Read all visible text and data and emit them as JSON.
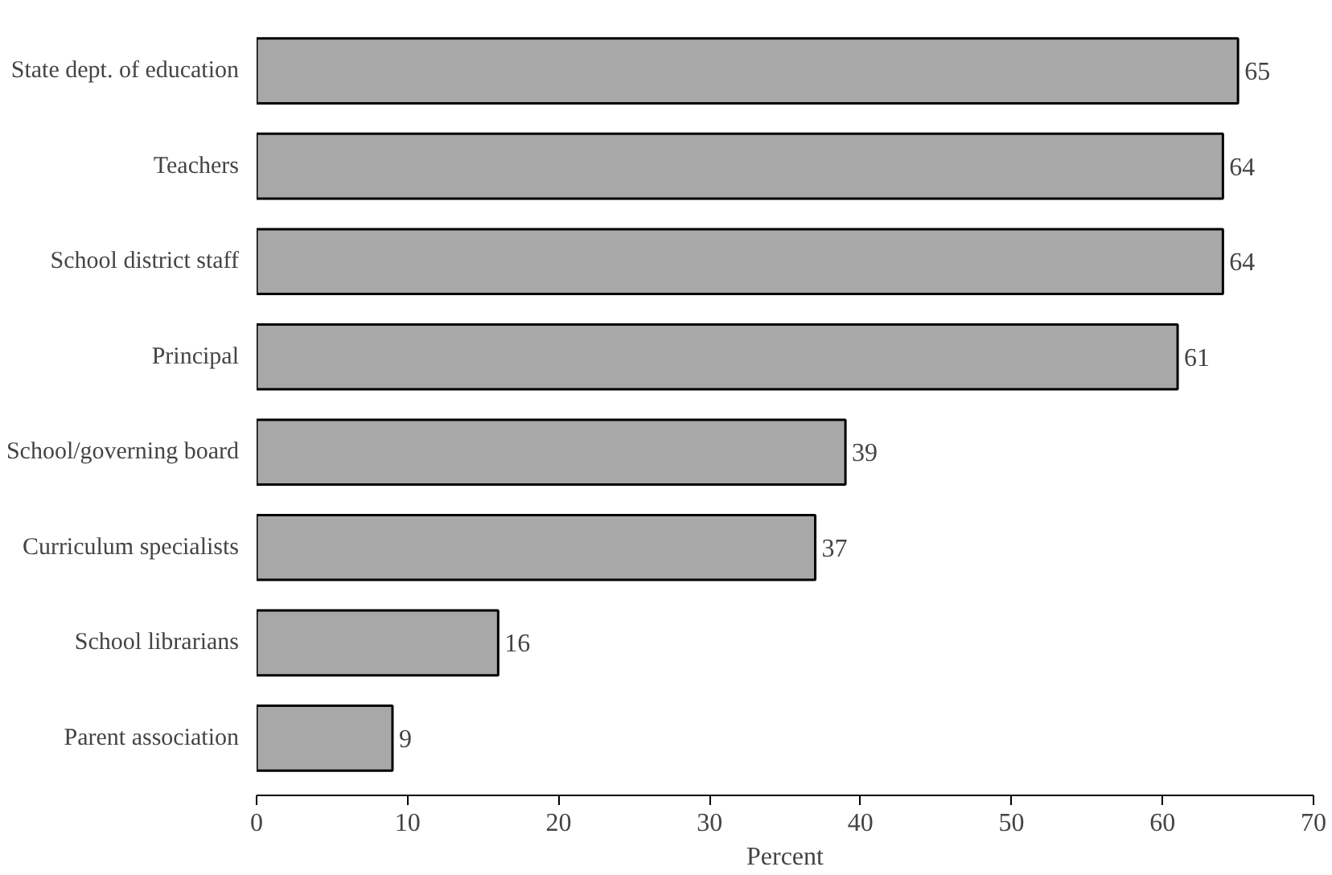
{
  "chart_data": {
    "type": "bar",
    "orientation": "horizontal",
    "xlabel": "Percent",
    "categories": [
      "State dept. of education",
      "Teachers",
      "School district staff",
      "Principal",
      "School/governing board",
      "Curriculum specialists",
      "School librarians",
      "Parent association"
    ],
    "values": [
      65,
      64,
      64,
      61,
      39,
      37,
      16,
      9
    ],
    "color": "#a8a8a8",
    "xlim": [
      0,
      70
    ],
    "xticks": [
      0,
      10,
      20,
      30,
      40,
      50,
      60,
      70
    ],
    "data_labels": true
  }
}
